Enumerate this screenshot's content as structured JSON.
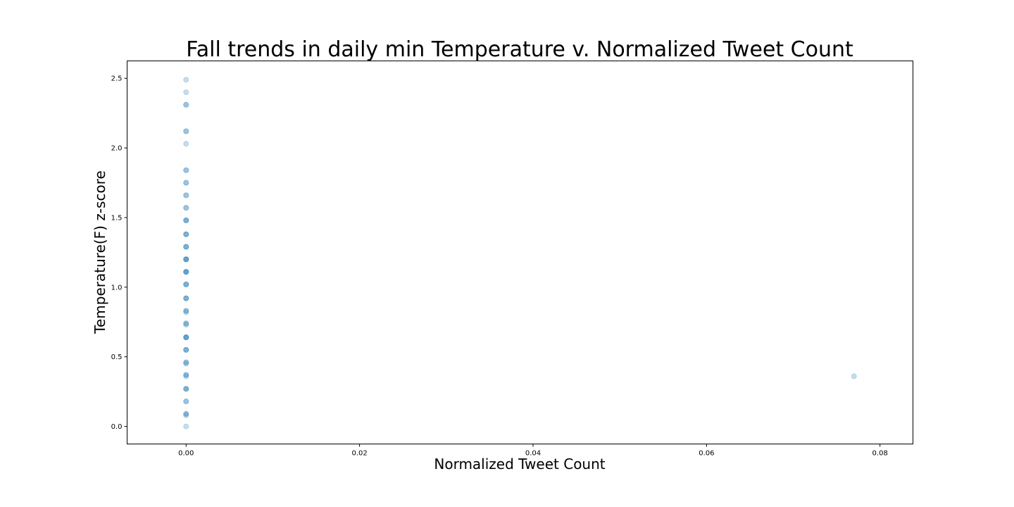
{
  "chart_data": {
    "type": "scatter",
    "title": "Fall trends in daily min Temperature v. Normalized Tweet Count",
    "xlabel": "Normalized Tweet Count",
    "ylabel": "Temperature(F) z-score",
    "xlim": [
      -0.0068,
      0.0838
    ],
    "ylim": [
      -0.126,
      2.625
    ],
    "x_ticks": [
      0.0,
      0.02,
      0.04,
      0.06,
      0.08
    ],
    "x_tick_labels": [
      "0.00",
      "0.02",
      "0.04",
      "0.06",
      "0.08"
    ],
    "y_ticks": [
      0.0,
      0.5,
      1.0,
      1.5,
      2.0,
      2.5
    ],
    "y_tick_labels": [
      "0.0",
      "0.5",
      "1.0",
      "1.5",
      "2.0",
      "2.5"
    ],
    "grid": false,
    "legend": "none",
    "marker_color": "#1f77b4",
    "marker_alpha": 0.25,
    "series": [
      {
        "x": [
          0.0,
          0.0,
          0.0,
          0.0,
          0.0,
          0.0,
          0.0,
          0.0,
          0.0,
          0.0,
          0.0,
          0.0,
          0.0,
          0.0,
          0.0,
          0.0,
          0.0,
          0.0,
          0.0,
          0.0,
          0.0,
          0.0,
          0.0,
          0.0,
          0.0,
          0.0,
          0.0,
          0.0,
          0.0,
          0.0,
          0.0,
          0.0,
          0.0,
          0.0,
          0.0,
          0.0,
          0.0,
          0.0,
          0.0,
          0.0,
          0.0,
          0.0,
          0.0,
          0.0,
          0.0,
          0.0,
          0.0,
          0.0,
          0.0,
          0.0,
          0.0,
          0.0,
          0.0,
          0.0,
          0.0,
          0.0,
          0.0,
          0.0,
          0.0,
          0.0,
          0.0,
          0.0,
          0.0,
          0.0,
          0.0,
          0.0,
          0.077
        ],
        "y": [
          2.49,
          2.4,
          2.31,
          2.31,
          2.12,
          2.12,
          2.03,
          1.84,
          1.84,
          1.75,
          1.75,
          1.66,
          1.66,
          1.57,
          1.57,
          1.48,
          1.48,
          1.48,
          1.38,
          1.38,
          1.38,
          1.29,
          1.29,
          1.29,
          1.2,
          1.2,
          1.2,
          1.2,
          1.11,
          1.11,
          1.11,
          1.11,
          1.02,
          1.02,
          1.02,
          0.92,
          0.92,
          0.92,
          0.83,
          0.83,
          0.82,
          0.74,
          0.74,
          0.73,
          0.64,
          0.64,
          0.64,
          0.64,
          0.55,
          0.55,
          0.55,
          0.46,
          0.46,
          0.45,
          0.37,
          0.37,
          0.36,
          0.27,
          0.27,
          0.27,
          0.18,
          0.18,
          0.09,
          0.09,
          0.08,
          0.0,
          0.36
        ]
      }
    ]
  }
}
